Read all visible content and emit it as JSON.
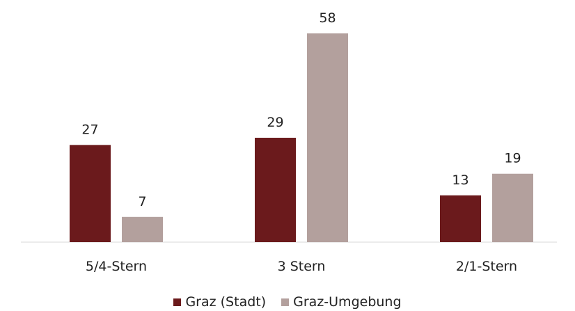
{
  "chart_data": {
    "type": "bar",
    "categories": [
      "5/4-Stern",
      "3 Stern",
      "2/1-Stern"
    ],
    "series": [
      {
        "name": "Graz (Stadt)",
        "values": [
          27,
          29,
          13
        ],
        "color": "#6b1a1c"
      },
      {
        "name": "Graz-Umgebung",
        "values": [
          7,
          58,
          19
        ],
        "color": "#b3a09d"
      }
    ],
    "ylim": [
      0,
      58
    ],
    "grid": false,
    "legend_position": "bottom",
    "axis_color": "#d9d9d9"
  }
}
